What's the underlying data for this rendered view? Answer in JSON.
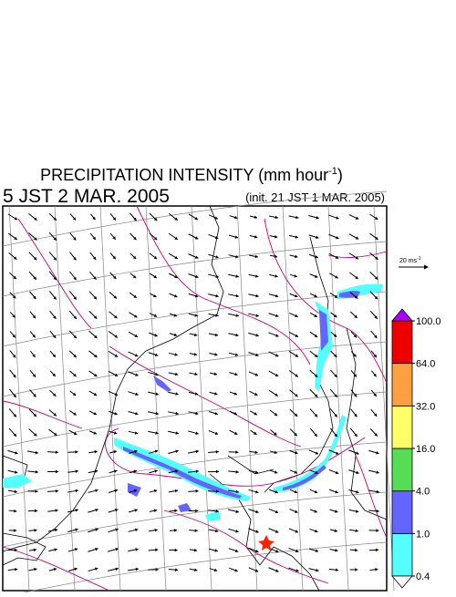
{
  "header": {
    "title": "PRECIPITATION INTENSITY (mm hour",
    "title_sup": "-1",
    "title_end": ")",
    "valid_time": "5 JST 2 MAR. 2005",
    "init_time": "(init. 21 JST 1 MAR. 2005)"
  },
  "wind_scale": {
    "label": "20 ms",
    "label_sup": "-1"
  },
  "colorbar": {
    "levels": [
      {
        "value": 0.4,
        "label": "0.4"
      },
      {
        "value": 1,
        "label": "1.0"
      },
      {
        "value": 4,
        "label": "4.0"
      },
      {
        "value": 16,
        "label": "16.0"
      },
      {
        "value": 32,
        "label": "32.0"
      },
      {
        "value": 64,
        "label": "64.0"
      },
      {
        "value": 100,
        "label": "100.0"
      }
    ],
    "colors": [
      "#55ffff",
      "#6464ff",
      "#55dd55",
      "#ffff66",
      "#ffa040",
      "#ee0000"
    ],
    "over_color": "#aa00ff",
    "under_color": "#ffffff"
  }
}
